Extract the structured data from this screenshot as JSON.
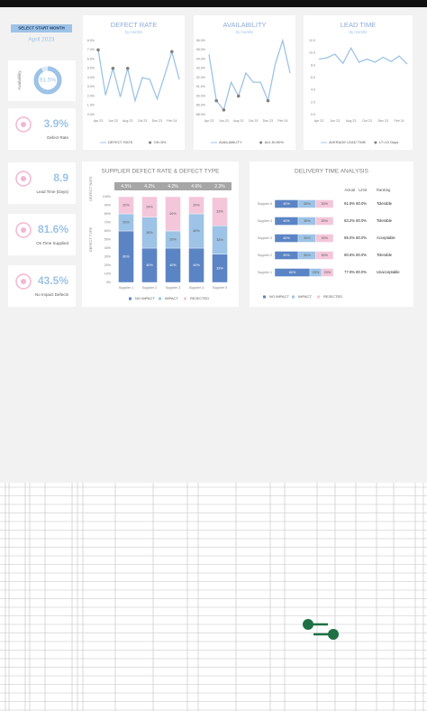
{
  "header": {
    "button": "SELECT START MONTH",
    "month": "April 2023"
  },
  "kpis": [
    {
      "caption": "Availability",
      "value": 91.5,
      "value_label": "91.5%"
    },
    {
      "caption": "Defect Rate",
      "value_label": "3.9%"
    },
    {
      "caption": "Lead Time (Days)",
      "value_label": "8.9"
    },
    {
      "caption": "On Time Supplied",
      "value_label": "81.6%"
    },
    {
      "caption": "No Impact Defects",
      "value_label": "43.5%"
    }
  ],
  "chart_data": [
    {
      "type": "line",
      "title": "DEFECT RATE",
      "subtitle": "by months",
      "categories": [
        "Apr 23",
        null,
        "Jun 23",
        null,
        "Aug 23",
        null,
        "Oct 23",
        null,
        "Dec 23",
        null,
        "Feb 24",
        null
      ],
      "ylim": [
        0,
        8
      ],
      "yticks": [
        {
          "value": 0,
          "label": "0.0%"
        },
        {
          "value": 1,
          "label": "1.0%"
        },
        {
          "value": 2,
          "label": "2.0%"
        },
        {
          "value": 3,
          "label": "3.0%"
        },
        {
          "value": 4,
          "label": "4.0%"
        },
        {
          "value": 5,
          "label": "5.0%"
        },
        {
          "value": 6,
          "label": "6.0%"
        },
        {
          "value": 7,
          "label": "7.0%"
        },
        {
          "value": 8,
          "label": "8.0%"
        }
      ],
      "series": [
        {
          "name": "DEFECT RATE",
          "color": "#9dc3e6",
          "values": [
            7.0,
            2.1,
            5.0,
            1.9,
            5.0,
            1.5,
            4.0,
            3.8,
            1.7,
            4.2,
            6.8,
            3.8
          ]
        },
        {
          "name": "OK<5%",
          "color": "#808080",
          "markers_only": true,
          "values": [
            7.0,
            null,
            5.0,
            null,
            5.0,
            null,
            null,
            null,
            null,
            null,
            6.8,
            null
          ]
        }
      ]
    },
    {
      "type": "line",
      "title": "AVAILABILITY",
      "subtitle": "by months",
      "categories": [
        "Apr 23",
        null,
        "Jun 23",
        null,
        "Aug 23",
        null,
        "Oct 23",
        null,
        "Dec 23",
        null,
        "Feb 24",
        null
      ],
      "ylim": [
        88,
        96
      ],
      "yticks": [
        {
          "value": 88,
          "label": "88.0%"
        },
        {
          "value": 89,
          "label": "89.0%"
        },
        {
          "value": 90,
          "label": "90.0%"
        },
        {
          "value": 91,
          "label": "91.0%"
        },
        {
          "value": 92,
          "label": "92.0%"
        },
        {
          "value": 93,
          "label": "93.0%"
        },
        {
          "value": 94,
          "label": "94.0%"
        },
        {
          "value": 95,
          "label": "95.0%"
        },
        {
          "value": 96,
          "label": "96.0%"
        }
      ],
      "series": [
        {
          "name": "AVAILABILITY",
          "color": "#9dc3e6",
          "values": [
            94.5,
            89.5,
            88.5,
            91.5,
            90.0,
            92.5,
            91.5,
            91.5,
            89.5,
            93.5,
            96.0,
            92.5
          ]
        },
        {
          "name": "AVL.B<90%",
          "color": "#808080",
          "markers_only": true,
          "values": [
            null,
            89.5,
            88.5,
            null,
            90.0,
            null,
            null,
            null,
            89.5,
            null,
            null,
            null
          ]
        }
      ]
    },
    {
      "type": "line",
      "title": "LEAD TIME",
      "subtitle": "by months",
      "categories": [
        "Apr 23",
        null,
        "Jun 23",
        null,
        "Aug 23",
        null,
        "Oct 23",
        null,
        "Dec 23",
        null,
        "Feb 24",
        null
      ],
      "ylim": [
        0,
        12
      ],
      "yticks": [
        {
          "value": 0,
          "label": "0.0"
        },
        {
          "value": 2,
          "label": "2.0"
        },
        {
          "value": 4,
          "label": "4.0"
        },
        {
          "value": 6,
          "label": "6.0"
        },
        {
          "value": 8,
          "label": "8.0"
        },
        {
          "value": 10,
          "label": "10.0"
        },
        {
          "value": 12,
          "label": "12.0"
        }
      ],
      "series": [
        {
          "name": "AVERAGE LEAD TIME",
          "color": "#9dc3e6",
          "values": [
            9.0,
            9.2,
            9.8,
            8.3,
            10.8,
            8.5,
            9.0,
            8.5,
            9.3,
            8.6,
            9.5,
            8.2
          ]
        },
        {
          "name": "LT<10 Days",
          "color": "#808080",
          "markers_only": true,
          "values": [
            null,
            null,
            null,
            null,
            null,
            null,
            null,
            null,
            null,
            null,
            null,
            null
          ]
        }
      ]
    },
    {
      "type": "stacked_bar",
      "title": "SUPPLIER DEFECT RATE & DEFECT TYPE",
      "ylabel_top": "DEFECT RATE",
      "ylabel": "DEFECT TYPE",
      "categories": [
        "Supplier 1",
        "Supplier 2",
        "Supplier 3",
        "Supplier 4",
        "Supplier 5"
      ],
      "header_values": [
        4.5,
        4.2,
        4.2,
        4.6,
        2.3
      ],
      "header_value_labels": [
        "4.5%",
        "4.2%",
        "4.2%",
        "4.6%",
        "2.3%"
      ],
      "ylim": [
        0,
        100
      ],
      "yticks": [
        {
          "value": 0,
          "label": "0%"
        },
        {
          "value": 10,
          "label": "10%"
        },
        {
          "value": 20,
          "label": "20%"
        },
        {
          "value": 30,
          "label": "30%"
        },
        {
          "value": 40,
          "label": "40%"
        },
        {
          "value": 50,
          "label": "50%"
        },
        {
          "value": 60,
          "label": "60%"
        },
        {
          "value": 70,
          "label": "70%"
        },
        {
          "value": 80,
          "label": "80%"
        },
        {
          "value": 90,
          "label": "90%"
        },
        {
          "value": 100,
          "label": "100%"
        }
      ],
      "series": [
        {
          "name": "NO IMPACT",
          "color": "#5b84c4",
          "values": [
            60,
            40,
            40,
            40,
            33
          ],
          "value_labels": [
            "60%",
            "40%",
            "40%",
            "40%",
            "33%"
          ]
        },
        {
          "name": "IMPACT",
          "color": "#9dc3e6",
          "values": [
            20,
            36,
            20,
            40,
            33
          ],
          "value_labels": [
            "20%",
            "36%",
            "20%",
            "40%",
            "33%"
          ]
        },
        {
          "name": "REJECTED",
          "color": "#f4c6da",
          "values": [
            20,
            24,
            40,
            20,
            33
          ],
          "value_labels": [
            "20%",
            "24%",
            "40%",
            "20%",
            "33%"
          ]
        }
      ]
    },
    {
      "type": "stacked_hbar",
      "title": "DELIVERY TIME ANALYSIS",
      "categories": [
        "Supplier 5",
        "Supplier 4",
        "Supplier 3",
        "Supplier 2",
        "Supplier 1"
      ],
      "xlim": [
        0,
        100
      ],
      "columns": [
        "Actual",
        "Limit",
        "Ranking"
      ],
      "table": [
        [
          "81.8%",
          "80.0%",
          "Tolerable"
        ],
        [
          "83.2%",
          "80.0%",
          "Tolerable"
        ],
        [
          "85.0%",
          "80.0%",
          "Acceptable"
        ],
        [
          "80.6%",
          "80.0%",
          "Tolerable"
        ],
        [
          "77.9%",
          "80.0%",
          "Unacceptable"
        ]
      ],
      "series": [
        {
          "name": "NO IMPACT",
          "color": "#5b84c4",
          "values": [
            40,
            40,
            40,
            40,
            60
          ],
          "value_labels": [
            "40%",
            "40%",
            "40%",
            "40%",
            "60%"
          ]
        },
        {
          "name": "IMPACT",
          "color": "#9dc3e6",
          "values": [
            30,
            30,
            30,
            30,
            20
          ],
          "value_labels": [
            "30%",
            "30%",
            "30%",
            "30%",
            "20%"
          ]
        },
        {
          "name": "REJECTED",
          "color": "#f4c6da",
          "values": [
            30,
            30,
            30,
            30,
            20
          ],
          "value_labels": [
            "30%",
            "30%",
            "30%",
            "30%",
            "20%"
          ]
        }
      ]
    }
  ]
}
